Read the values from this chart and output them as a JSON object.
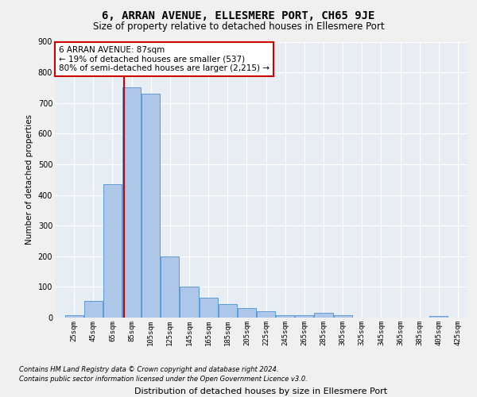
{
  "title": "6, ARRAN AVENUE, ELLESMERE PORT, CH65 9JE",
  "subtitle": "Size of property relative to detached houses in Ellesmere Port",
  "xlabel": "Distribution of detached houses by size in Ellesmere Port",
  "ylabel": "Number of detached properties",
  "footer_line1": "Contains HM Land Registry data © Crown copyright and database right 2024.",
  "footer_line2": "Contains public sector information licensed under the Open Government Licence v3.0.",
  "annotation_title": "6 ARRAN AVENUE: 87sqm",
  "annotation_line1": "← 19% of detached houses are smaller (537)",
  "annotation_line2": "80% of semi-detached houses are larger (2,215) →",
  "property_size_sqm": 87,
  "bar_color": "#aec6e8",
  "bar_edge_color": "#5b9bd5",
  "redline_color": "#cc0000",
  "annotation_box_color": "#ffffff",
  "annotation_box_edge": "#cc0000",
  "plot_bg_color": "#e8edf4",
  "fig_bg_color": "#f0f0f0",
  "ylim": [
    0,
    900
  ],
  "yticks": [
    0,
    100,
    200,
    300,
    400,
    500,
    600,
    700,
    800,
    900
  ],
  "bin_starts": [
    25,
    45,
    65,
    85,
    105,
    125,
    145,
    165,
    185,
    205,
    225,
    245,
    265,
    285,
    305,
    325,
    345,
    365,
    385,
    405,
    425
  ],
  "bin_labels": [
    "25sqm",
    "45sqm",
    "65sqm",
    "85sqm",
    "105sqm",
    "125sqm",
    "145sqm",
    "165sqm",
    "185sqm",
    "205sqm",
    "225sqm",
    "245sqm",
    "265sqm",
    "285sqm",
    "305sqm",
    "325sqm",
    "345sqm",
    "365sqm",
    "385sqm",
    "405sqm",
    "425sqm"
  ],
  "bar_heights": [
    8,
    55,
    435,
    750,
    730,
    200,
    100,
    65,
    45,
    30,
    20,
    8,
    8,
    15,
    8,
    0,
    0,
    0,
    0,
    5,
    0
  ]
}
